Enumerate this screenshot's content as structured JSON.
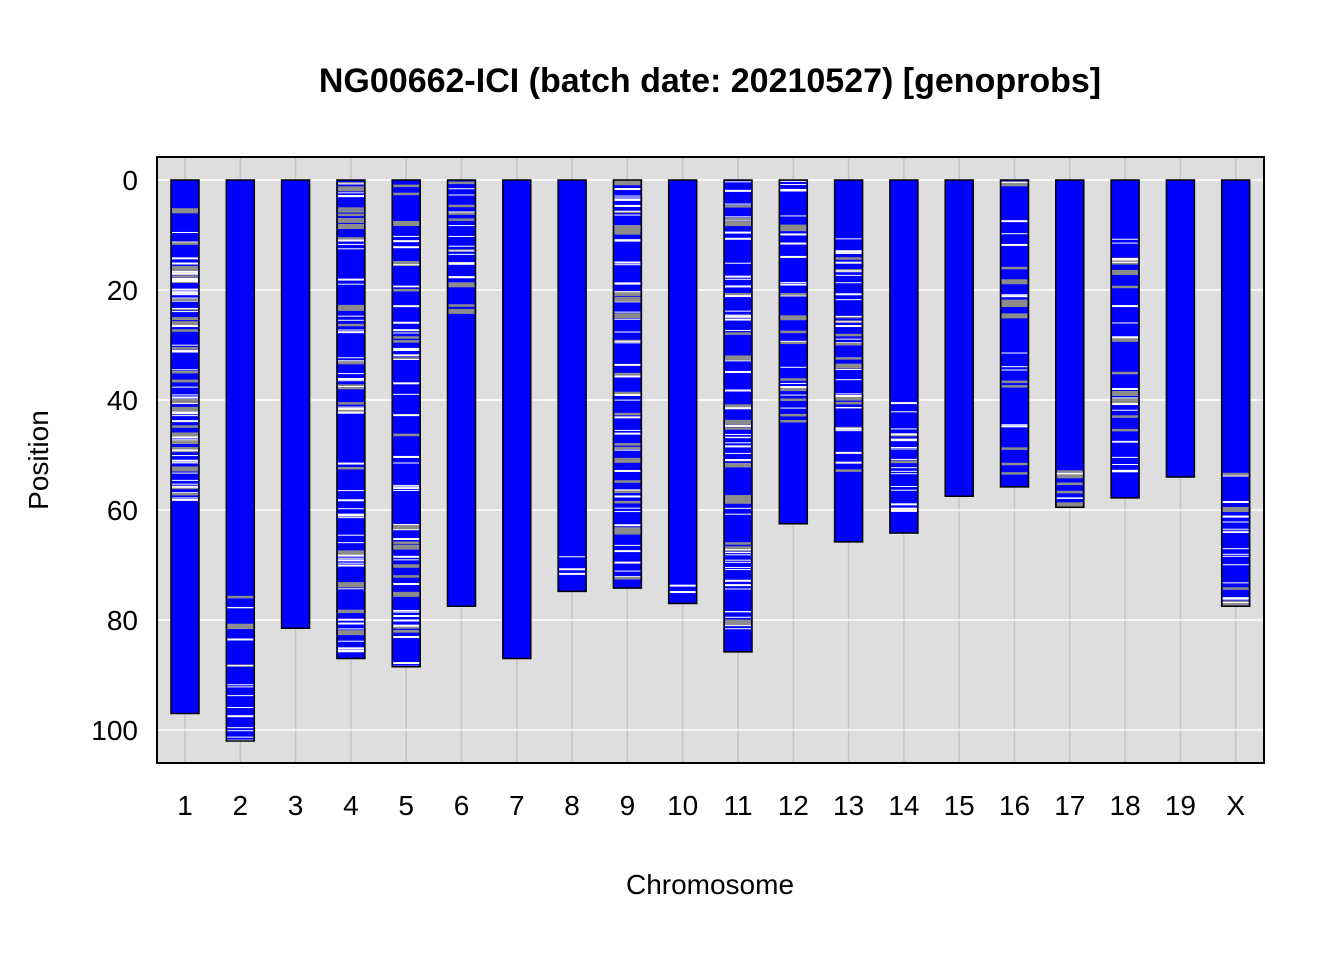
{
  "chart_data": {
    "type": "chromosome_map",
    "title": "NG00662-ICI (batch date: 20210527) [genoprobs]",
    "xlabel": "Chromosome",
    "ylabel": "Position",
    "ylim": [
      0,
      105
    ],
    "y_axis_inverted": true,
    "yticks": [
      0,
      20,
      40,
      60,
      80,
      100
    ],
    "grid": true,
    "chromosome_color": "#0000ff",
    "panel_background": "#dedede",
    "marker_colors": {
      "white": "#ffffff",
      "gray": "#8c8c8c"
    },
    "chromosomes": [
      {
        "name": "1",
        "length": 97
      },
      {
        "name": "2",
        "length": 102
      },
      {
        "name": "3",
        "length": 81.5
      },
      {
        "name": "4",
        "length": 87
      },
      {
        "name": "5",
        "length": 88.5
      },
      {
        "name": "6",
        "length": 77.5
      },
      {
        "name": "7",
        "length": 87
      },
      {
        "name": "8",
        "length": 74.8
      },
      {
        "name": "9",
        "length": 74.2
      },
      {
        "name": "10",
        "length": 77
      },
      {
        "name": "11",
        "length": 85.8
      },
      {
        "name": "12",
        "length": 62.5
      },
      {
        "name": "13",
        "length": 65.8
      },
      {
        "name": "14",
        "length": 64.2
      },
      {
        "name": "15",
        "length": 57.5
      },
      {
        "name": "16",
        "length": 55.8
      },
      {
        "name": "17",
        "length": 59.5
      },
      {
        "name": "18",
        "length": 57.8
      },
      {
        "name": "19",
        "length": 54
      },
      {
        "name": "X",
        "length": 77.5
      }
    ]
  }
}
